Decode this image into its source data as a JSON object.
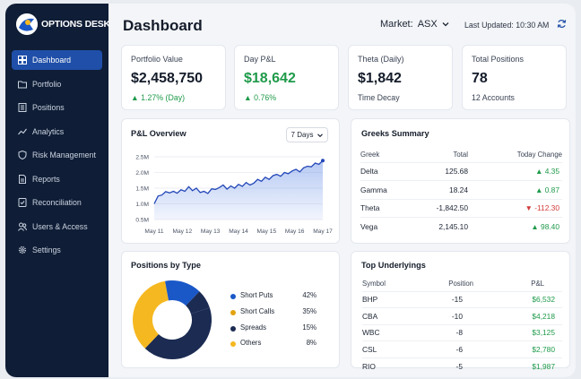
{
  "brand": {
    "name": "OPTIONS DESK"
  },
  "sidebar": {
    "items": [
      {
        "label": "Dashboard",
        "icon": "dashboard-icon",
        "active": true
      },
      {
        "label": "Portfolio",
        "icon": "folder-icon"
      },
      {
        "label": "Positions",
        "icon": "list-icon"
      },
      {
        "label": "Analytics",
        "icon": "analytics-icon"
      },
      {
        "label": "Risk Management",
        "icon": "shield-icon"
      },
      {
        "label": "Reports",
        "icon": "report-icon"
      },
      {
        "label": "Reconciliation",
        "icon": "reconcile-icon"
      },
      {
        "label": "Users & Access",
        "icon": "users-icon"
      },
      {
        "label": "Settings",
        "icon": "gear-icon"
      }
    ]
  },
  "header": {
    "title": "Dashboard",
    "market_label": "Market:",
    "market_value": "ASX",
    "last_updated": "Last Updated: 10:30 AM"
  },
  "kpis": [
    {
      "label": "Portfolio Value",
      "value": "$2,458,750",
      "sub": "▲ 1.27% (Day)"
    },
    {
      "label": "Day P&L",
      "value": "$18,642",
      "sub": "▲ 0.76%"
    },
    {
      "label": "Theta (Daily)",
      "value": "$1,842",
      "sub": "Time Decay"
    },
    {
      "label": "Total Positions",
      "value": "78",
      "sub": "12 Accounts"
    }
  ],
  "pnl_overview": {
    "title": "P&L Overview",
    "range": "7 Days"
  },
  "greeks": {
    "title": "Greeks Summary",
    "columns": [
      "Greek",
      "Total",
      "Today Change"
    ],
    "rows": [
      {
        "greek": "Delta",
        "total": "125.68",
        "change": "▲ 4.35",
        "direction": "up"
      },
      {
        "greek": "Gamma",
        "total": "18.24",
        "change": "▲ 0.87",
        "direction": "up"
      },
      {
        "greek": "Theta",
        "total": "-1,842.50",
        "change": "▼ -112.30",
        "direction": "down"
      },
      {
        "greek": "Vega",
        "total": "2,145.10",
        "change": "▲ 98.40",
        "direction": "up"
      }
    ]
  },
  "positions_by_type": {
    "title": "Positions by Type"
  },
  "top_underlyings": {
    "title": "Top Underlyings",
    "columns": [
      "Symbol",
      "Position",
      "P&L"
    ],
    "rows": [
      {
        "symbol": "BHP",
        "position": "-15",
        "pnl": "$6,532"
      },
      {
        "symbol": "CBA",
        "position": "-10",
        "pnl": "$4,218"
      },
      {
        "symbol": "WBC",
        "position": "-8",
        "pnl": "$3,125"
      },
      {
        "symbol": "CSL",
        "position": "-6",
        "pnl": "$2,780"
      },
      {
        "symbol": "RIO",
        "position": "-5",
        "pnl": "$1,987"
      }
    ]
  },
  "colors": {
    "sidebar_bg": "#0f1d36",
    "active_nav": "#1f4fa8",
    "positive": "#1f9a4a",
    "negative": "#d23b3b",
    "line": "#2347b8"
  },
  "chart_data": [
    {
      "type": "area",
      "x_ticks": [
        "May 11",
        "May 12",
        "May 13",
        "May 14",
        "May 15",
        "May 16",
        "May 17"
      ],
      "y_ticks": [
        "2.5M",
        "2.0M",
        "1.5M",
        "1.0M",
        "0.5M"
      ],
      "ylim": [
        0.5,
        2.5
      ],
      "grid": true,
      "values": [
        1.0,
        1.25,
        1.28,
        1.39,
        1.35,
        1.4,
        1.34,
        1.45,
        1.4,
        1.55,
        1.42,
        1.5,
        1.36,
        1.4,
        1.33,
        1.48,
        1.46,
        1.52,
        1.6,
        1.47,
        1.57,
        1.5,
        1.62,
        1.56,
        1.68,
        1.6,
        1.66,
        1.78,
        1.72,
        1.85,
        1.78,
        1.9,
        1.94,
        1.88,
        2.0,
        1.96,
        2.05,
        2.1,
        2.02,
        2.15,
        2.2,
        2.18,
        2.3,
        2.26,
        2.38
      ]
    },
    {
      "type": "pie",
      "labels": [
        "Short Puts",
        "Short Calls",
        "Spreads",
        "Others"
      ],
      "values": [
        42,
        35,
        15,
        8
      ],
      "display": [
        "42%",
        "35%",
        "15%",
        "8%"
      ],
      "colors": [
        "#1a58c8",
        "#e2a310",
        "#1b2b52",
        "#f5b820"
      ],
      "plot_colors": [
        "#1b2b52",
        "#f5b820",
        "#1a58c8",
        "#1b2b52"
      ],
      "style": "donut"
    }
  ]
}
